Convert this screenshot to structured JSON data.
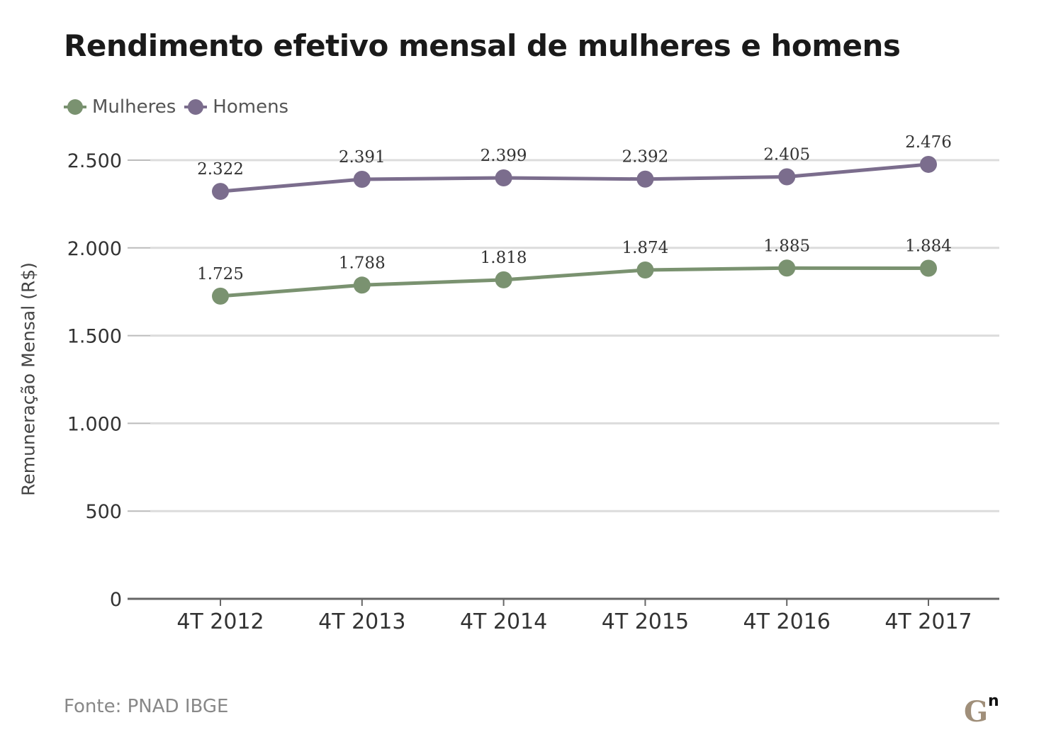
{
  "chart_data": {
    "type": "line",
    "title": "Rendimento efetivo mensal de mulheres e homens",
    "ylabel": "Remuneração Mensal (R$)",
    "xlabel": "",
    "categories": [
      "4T 2012",
      "4T 2013",
      "4T 2014",
      "4T 2015",
      "4T 2016",
      "4T 2017"
    ],
    "series": [
      {
        "name": "Mulheres",
        "color": "#7a9270",
        "values": [
          1725,
          1788,
          1818,
          1874,
          1885,
          1884
        ],
        "labels": [
          "1.725",
          "1.788",
          "1.818",
          "1.874",
          "1.885",
          "1.884"
        ]
      },
      {
        "name": "Homens",
        "color": "#7b6d8d",
        "values": [
          2322,
          2391,
          2399,
          2392,
          2405,
          2476
        ],
        "labels": [
          "2.322",
          "2.391",
          "2.399",
          "2.392",
          "2.405",
          "2.476"
        ]
      }
    ],
    "ylim": [
      0,
      2500
    ],
    "yticks": [
      0,
      500,
      1000,
      1500,
      2000,
      2500
    ],
    "ytick_labels": [
      "0",
      "500",
      "1.000",
      "1.500",
      "2.000",
      "2.500"
    ],
    "grid": true,
    "legend_position": "top-left"
  },
  "source": "Fonte: PNAD IBGE",
  "logo_text": "G"
}
